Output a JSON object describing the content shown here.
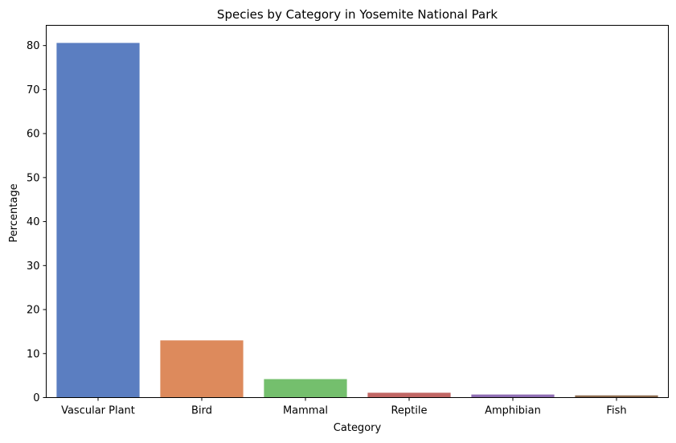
{
  "chart_data": {
    "type": "bar",
    "title": "Species by Category in Yosemite National Park",
    "xlabel": "Category",
    "ylabel": "Percentage",
    "categories": [
      "Vascular Plant",
      "Bird",
      "Mammal",
      "Reptile",
      "Amphibian",
      "Fish"
    ],
    "values": [
      80.6,
      13.0,
      4.2,
      1.1,
      0.7,
      0.5
    ],
    "colors": [
      "#5b7ec1",
      "#dd8a5c",
      "#74bf6d",
      "#c16664",
      "#906fb5",
      "#8c6c50"
    ],
    "ylim": [
      0,
      84.6
    ],
    "yticks": [
      0,
      10,
      20,
      30,
      40,
      50,
      60,
      70,
      80
    ],
    "grid": false,
    "legend": "none"
  }
}
